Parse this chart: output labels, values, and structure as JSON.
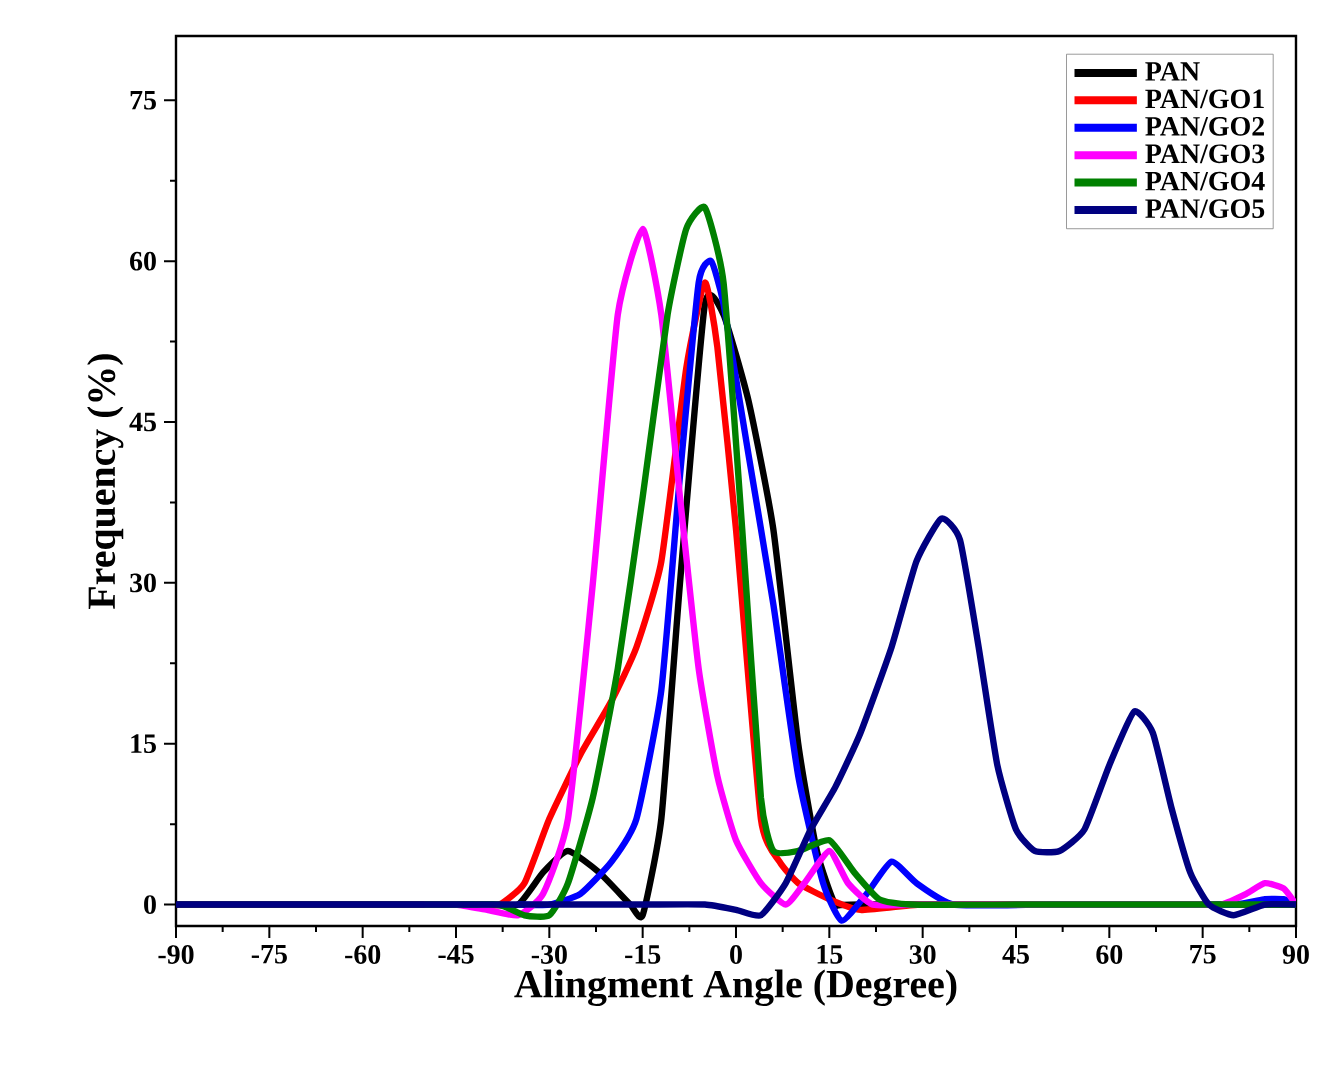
{
  "chart_data": {
    "type": "line",
    "xlabel": "Alingment Angle (Degree)",
    "ylabel": "Frequency (%)",
    "xlim": [
      -90,
      90
    ],
    "ylim": [
      -2,
      81
    ],
    "xticks": [
      -90,
      -75,
      -60,
      -45,
      -30,
      -15,
      0,
      15,
      30,
      45,
      60,
      75,
      90
    ],
    "yticks": [
      0,
      15,
      30,
      45,
      60,
      75
    ],
    "grid": false,
    "legend": "top right",
    "marker": "none",
    "line_style": "solid",
    "series": [
      {
        "name": "PAN",
        "color": "#000000",
        "x": [
          -90,
          -70,
          -50,
          -40,
          -35,
          -31,
          -27,
          -22,
          -17,
          -15,
          -12,
          -9,
          -5,
          -2,
          2,
          6,
          10,
          13,
          16,
          20,
          90
        ],
        "values": [
          0,
          0,
          0,
          0,
          0,
          3,
          5,
          3,
          0,
          -1,
          8,
          30,
          56,
          55,
          47,
          35,
          15,
          5,
          0,
          0,
          0
        ]
      },
      {
        "name": "PAN/GO1",
        "color": "#ff0000",
        "x": [
          -42,
          -38,
          -34,
          -30,
          -25,
          -20,
          -16,
          -12,
          -8,
          -5,
          -3,
          0,
          4,
          7,
          10,
          15,
          20,
          30,
          50
        ],
        "values": [
          0,
          0,
          2,
          8,
          14,
          19,
          24,
          32,
          50,
          58,
          52,
          35,
          8,
          4,
          2,
          0.5,
          -0.5,
          0,
          0
        ]
      },
      {
        "name": "PAN/GO2",
        "color": "#0000ff",
        "x": [
          -35,
          -30,
          -25,
          -20,
          -16,
          -12,
          -9,
          -6,
          -4,
          -2,
          2,
          6,
          10,
          14,
          17,
          21,
          25,
          29,
          35,
          50,
          65,
          80,
          85,
          88,
          90
        ],
        "values": [
          0,
          0,
          1,
          4,
          8,
          20,
          40,
          58,
          60,
          56,
          42,
          28,
          12,
          2,
          -1.5,
          1,
          4,
          2,
          0,
          0,
          0,
          0,
          0.5,
          0.5,
          0
        ]
      },
      {
        "name": "PAN/GO3",
        "color": "#ff00ff",
        "x": [
          -50,
          -45,
          -40,
          -35,
          -31,
          -27,
          -23,
          -19,
          -15,
          -12,
          -9,
          -6,
          -3,
          0,
          4,
          8,
          11,
          15,
          18,
          22,
          30,
          45,
          60,
          75,
          78,
          82,
          85,
          88,
          90
        ],
        "values": [
          0,
          0,
          -0.5,
          -1,
          1,
          8,
          30,
          55,
          63,
          55,
          38,
          22,
          12,
          6,
          2,
          0,
          2,
          5,
          2,
          0,
          0,
          0,
          0,
          0,
          0,
          1,
          2,
          1.5,
          0
        ]
      },
      {
        "name": "PAN/GO4",
        "color": "#008000",
        "x": [
          -50,
          -42,
          -38,
          -34,
          -30,
          -27,
          -23,
          -19,
          -15,
          -11,
          -8,
          -5,
          -2,
          1,
          4,
          6,
          10,
          15,
          19,
          23,
          28,
          45,
          60,
          75,
          90
        ],
        "values": [
          0,
          0,
          0,
          -1,
          -1,
          2,
          10,
          22,
          38,
          55,
          63,
          65,
          58,
          35,
          10,
          5,
          5,
          6,
          3,
          0.5,
          0,
          0,
          0,
          0,
          0
        ]
      },
      {
        "name": "PAN/GO5",
        "color": "#000080",
        "x": [
          -90,
          -70,
          -50,
          -30,
          -15,
          -5,
          0,
          4,
          8,
          12,
          16,
          20,
          25,
          29,
          33,
          36,
          39,
          42,
          45,
          48,
          52,
          56,
          60,
          64,
          67,
          70,
          73,
          76,
          80,
          85,
          90
        ],
        "values": [
          0,
          0,
          0,
          0,
          0,
          0,
          -0.5,
          -1,
          2,
          7,
          11,
          16,
          24,
          32,
          36,
          34,
          24,
          13,
          7,
          5,
          5,
          7,
          13,
          18,
          16,
          9,
          3,
          0,
          -1,
          0,
          0
        ]
      }
    ]
  }
}
